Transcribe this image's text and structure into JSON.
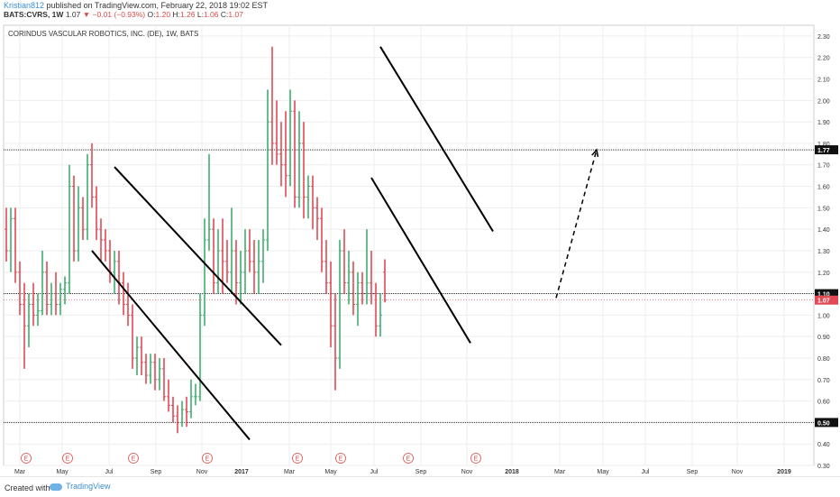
{
  "header": {
    "author": "Kristian812",
    "published": "published on TradingView.com, February 22, 2018 19:02 EST",
    "ticker": "BATS:CVRS, 1W",
    "last": "1.07",
    "change": "−0.01 (−0.93%)",
    "o_label": "O:",
    "o_value": "1.20",
    "h_label": "H:",
    "h_value": "1.26",
    "l_label": "L:",
    "l_value": "1.06",
    "c_label": "C:",
    "c_value": "1.07"
  },
  "footer": {
    "created": "Created with",
    "brand": "TradingView"
  },
  "colors": {
    "up": "#3fae6e",
    "down": "#e14a55",
    "line": "#000000",
    "grid": "#eeeeee",
    "hline": "#333333",
    "earnings": "#e14a4a"
  },
  "chart_data": {
    "type": "ohlc",
    "title": "CORINDUS VASCULAR ROBOTICS, INC. (DE), 1W, BATS",
    "ylim": [
      0.3,
      2.35
    ],
    "y_ticks": [
      "0.30",
      "0.40",
      "0.50",
      "0.60",
      "0.70",
      "0.80",
      "0.90",
      "1.00",
      "1.10",
      "1.20",
      "1.30",
      "1.40",
      "1.50",
      "1.60",
      "1.70",
      "1.80",
      "1.90",
      "2.00",
      "2.10",
      "2.20",
      "2.30"
    ],
    "x_ticks": [
      "Mar",
      "May",
      "Jul",
      "Sep",
      "Nov",
      "2017",
      "Mar",
      "May",
      "Jul",
      "Sep",
      "Nov",
      "2018",
      "Mar",
      "May",
      "Jul",
      "Sep",
      "Nov",
      "2019"
    ],
    "price_labels": [
      {
        "value": 1.77,
        "text": "1.77",
        "style": "black"
      },
      {
        "value": 1.1,
        "text": "1.10",
        "style": "black"
      },
      {
        "value": 1.07,
        "text": "1.07",
        "style": "red"
      },
      {
        "value": 0.5,
        "text": "0.50",
        "style": "black"
      }
    ],
    "horizontal_lines": [
      1.77,
      1.1,
      0.5
    ],
    "earnings_markers": [
      "E",
      "E",
      "E",
      "E",
      "E",
      "E",
      "E",
      "E"
    ],
    "bars": [
      [
        1.4,
        1.5,
        1.25,
        1.3
      ],
      [
        1.3,
        1.5,
        1.2,
        1.45
      ],
      [
        1.45,
        1.5,
        1.15,
        1.2
      ],
      [
        1.2,
        1.25,
        1.0,
        1.05
      ],
      [
        1.05,
        1.15,
        0.75,
        0.95
      ],
      [
        0.95,
        1.1,
        0.85,
        1.05
      ],
      [
        1.05,
        1.15,
        0.95,
        1.0
      ],
      [
        1.0,
        1.1,
        0.95,
        1.02
      ],
      [
        1.02,
        1.3,
        1.0,
        1.2
      ],
      [
        1.2,
        1.25,
        1.0,
        1.05
      ],
      [
        1.05,
        1.15,
        1.0,
        1.1
      ],
      [
        1.1,
        1.2,
        1.0,
        1.05
      ],
      [
        1.05,
        1.15,
        1.0,
        1.12
      ],
      [
        1.12,
        1.18,
        1.05,
        1.15
      ],
      [
        1.15,
        1.7,
        1.1,
        1.6
      ],
      [
        1.6,
        1.65,
        1.25,
        1.3
      ],
      [
        1.3,
        1.6,
        1.25,
        1.5
      ],
      [
        1.5,
        1.55,
        1.35,
        1.4
      ],
      [
        1.4,
        1.75,
        1.35,
        1.7
      ],
      [
        1.7,
        1.8,
        1.5,
        1.55
      ],
      [
        1.55,
        1.6,
        1.35,
        1.4
      ],
      [
        1.4,
        1.45,
        1.25,
        1.35
      ],
      [
        1.35,
        1.4,
        1.25,
        1.3
      ],
      [
        1.3,
        1.35,
        1.15,
        1.2
      ],
      [
        1.2,
        1.3,
        1.1,
        1.25
      ],
      [
        1.25,
        1.3,
        1.05,
        1.15
      ],
      [
        1.15,
        1.2,
        1.0,
        1.05
      ],
      [
        1.05,
        1.15,
        0.95,
        1.0
      ],
      [
        1.0,
        1.05,
        0.75,
        0.8
      ],
      [
        0.8,
        0.9,
        0.72,
        0.85
      ],
      [
        0.85,
        0.9,
        0.72,
        0.78
      ],
      [
        0.78,
        0.82,
        0.68,
        0.72
      ],
      [
        0.72,
        0.82,
        0.68,
        0.78
      ],
      [
        0.78,
        0.82,
        0.65,
        0.7
      ],
      [
        0.7,
        0.8,
        0.65,
        0.75
      ],
      [
        0.75,
        0.8,
        0.6,
        0.62
      ],
      [
        0.62,
        0.7,
        0.55,
        0.58
      ],
      [
        0.58,
        0.62,
        0.5,
        0.53
      ],
      [
        0.53,
        0.58,
        0.45,
        0.5
      ],
      [
        0.5,
        0.6,
        0.48,
        0.56
      ],
      [
        0.56,
        0.62,
        0.48,
        0.55
      ],
      [
        0.55,
        0.7,
        0.52,
        0.62
      ],
      [
        0.62,
        0.68,
        0.58,
        0.62
      ],
      [
        0.62,
        1.1,
        0.6,
        1.0
      ],
      [
        1.0,
        1.45,
        0.95,
        1.35
      ],
      [
        1.35,
        1.75,
        1.3,
        1.4
      ],
      [
        1.4,
        1.45,
        1.1,
        1.15
      ],
      [
        1.15,
        1.4,
        1.1,
        1.3
      ],
      [
        1.3,
        1.45,
        1.1,
        1.25
      ],
      [
        1.25,
        1.35,
        1.15,
        1.2
      ],
      [
        1.2,
        1.5,
        1.1,
        1.3
      ],
      [
        1.3,
        1.35,
        1.05,
        1.15
      ],
      [
        1.15,
        1.3,
        1.05,
        1.2
      ],
      [
        1.2,
        1.4,
        1.1,
        1.3
      ],
      [
        1.3,
        1.4,
        1.2,
        1.25
      ],
      [
        1.25,
        1.35,
        1.1,
        1.2
      ],
      [
        1.2,
        1.35,
        1.1,
        1.25
      ],
      [
        1.25,
        1.4,
        1.15,
        1.35
      ],
      [
        1.35,
        2.05,
        1.3,
        1.9
      ],
      [
        1.9,
        2.25,
        1.7,
        1.8
      ],
      [
        1.8,
        2.0,
        1.7,
        1.75
      ],
      [
        1.75,
        1.9,
        1.6,
        1.7
      ],
      [
        1.7,
        1.95,
        1.55,
        1.65
      ],
      [
        1.65,
        2.05,
        1.6,
        1.95
      ],
      [
        1.95,
        2.0,
        1.5,
        1.55
      ],
      [
        1.55,
        1.95,
        1.5,
        1.8
      ],
      [
        1.8,
        1.9,
        1.45,
        1.55
      ],
      [
        1.55,
        1.65,
        1.45,
        1.6
      ],
      [
        1.6,
        1.65,
        1.4,
        1.5
      ],
      [
        1.5,
        1.55,
        1.35,
        1.45
      ],
      [
        1.45,
        1.5,
        1.2,
        1.25
      ],
      [
        1.25,
        1.35,
        1.1,
        1.15
      ],
      [
        1.15,
        1.25,
        0.85,
        0.95
      ],
      [
        0.95,
        1.1,
        0.65,
        0.8
      ],
      [
        0.8,
        1.35,
        0.75,
        1.3
      ],
      [
        1.3,
        1.4,
        1.1,
        1.15
      ],
      [
        1.15,
        1.3,
        1.05,
        1.2
      ],
      [
        1.2,
        1.25,
        1.0,
        1.05
      ],
      [
        1.05,
        1.2,
        0.95,
        1.15
      ],
      [
        1.15,
        1.2,
        1.05,
        1.1
      ],
      [
        1.1,
        1.4,
        1.05,
        1.15
      ],
      [
        1.15,
        1.3,
        1.05,
        1.1
      ],
      [
        1.1,
        1.15,
        0.9,
        0.95
      ],
      [
        0.95,
        1.1,
        0.9,
        1.0
      ],
      [
        1.2,
        1.26,
        1.06,
        1.07
      ]
    ],
    "channels": [
      {
        "a": [
          24,
          1.69
        ],
        "b": [
          61,
          0.86
        ],
        "c": [
          19,
          1.3
        ],
        "d": [
          54,
          0.42
        ]
      },
      {
        "a": [
          83,
          2.25
        ],
        "b": [
          108,
          1.39
        ],
        "c": [
          81,
          1.64
        ],
        "d": [
          103,
          0.87
        ]
      }
    ],
    "projection": {
      "from": [
        122,
        1.08
      ],
      "to": [
        131,
        1.77
      ]
    }
  }
}
